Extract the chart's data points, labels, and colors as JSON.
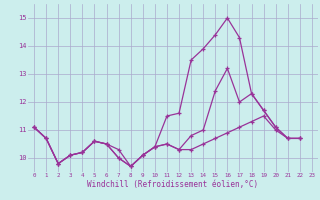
{
  "xlabel": "Windchill (Refroidissement éolien,°C)",
  "bg_color": "#cceeed",
  "grid_color": "#aaaacc",
  "line_color": "#993399",
  "marker": "+",
  "xlim": [
    -0.5,
    23.5
  ],
  "ylim": [
    9.5,
    15.5
  ],
  "yticks": [
    10,
    11,
    12,
    13,
    14,
    15
  ],
  "xticks": [
    0,
    1,
    2,
    3,
    4,
    5,
    6,
    7,
    8,
    9,
    10,
    11,
    12,
    13,
    14,
    15,
    16,
    17,
    18,
    19,
    20,
    21,
    22,
    23
  ],
  "series": [
    [
      11.1,
      10.7,
      9.8,
      10.1,
      10.2,
      10.6,
      10.5,
      10.3,
      9.7,
      10.1,
      10.4,
      11.5,
      11.6,
      13.5,
      13.9,
      14.4,
      15.0,
      14.3,
      12.3,
      11.7,
      11.1,
      10.7,
      10.7
    ],
    [
      11.1,
      10.7,
      9.8,
      10.1,
      10.2,
      10.6,
      10.5,
      10.0,
      9.7,
      10.1,
      10.4,
      10.5,
      10.3,
      10.8,
      11.0,
      12.4,
      13.2,
      12.0,
      12.3,
      11.7,
      11.1,
      10.7,
      10.7
    ],
    [
      11.1,
      10.7,
      9.8,
      10.1,
      10.2,
      10.6,
      10.5,
      10.0,
      9.7,
      10.1,
      10.4,
      10.5,
      10.3,
      10.3,
      10.5,
      10.7,
      10.9,
      11.1,
      11.3,
      11.5,
      11.0,
      10.7,
      10.7
    ]
  ]
}
